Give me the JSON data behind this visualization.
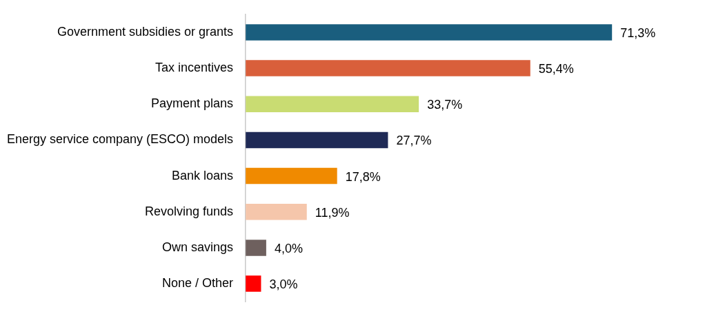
{
  "chart_data": {
    "type": "bar",
    "orientation": "horizontal",
    "categories": [
      "Government subsidies or grants",
      "Tax incentives",
      "Payment plans",
      "Energy service company (ESCO) models",
      "Bank loans",
      "Revolving funds",
      "Own savings",
      "None / Other"
    ],
    "values": [
      71.3,
      55.4,
      33.7,
      27.7,
      17.8,
      11.9,
      4.0,
      3.0
    ],
    "colors": [
      "#1a5e7e",
      "#d95f3b",
      "#c9dc72",
      "#1f2a56",
      "#f08a00",
      "#f5c6ab",
      "#6e605e",
      "#ff0000"
    ],
    "value_labels": [
      "71,3%",
      "55,4%",
      "33,7%",
      "27,7%",
      "17,8%",
      "11,9%",
      "4,0%",
      "3,0%"
    ],
    "legend": false,
    "tick_labels": "y"
  }
}
